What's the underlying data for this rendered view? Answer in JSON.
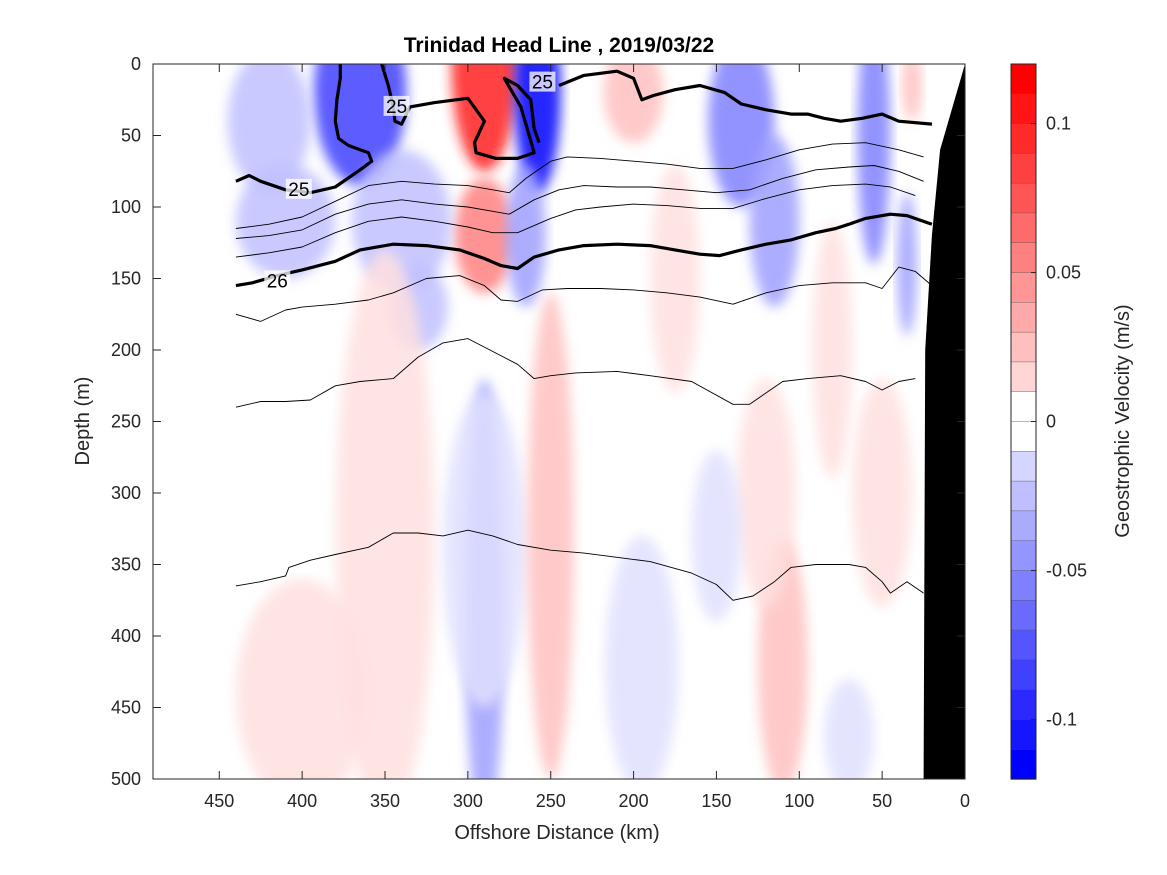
{
  "chart_data": {
    "type": "heatmap",
    "title": "Trinidad Head Line , 2019/03/22",
    "xlabel": "Offshore Distance (km)",
    "ylabel": "Depth (m)",
    "colorbar_label": "Geostrophic Velocity (m/s)",
    "xlim": [
      490,
      0
    ],
    "ylim": [
      0,
      500
    ],
    "clim": [
      -0.12,
      0.12
    ],
    "x_ticks": [
      "450",
      "400",
      "350",
      "300",
      "250",
      "200",
      "150",
      "100",
      "50",
      "0"
    ],
    "y_ticks": [
      "0",
      "50",
      "100",
      "150",
      "200",
      "250",
      "300",
      "350",
      "400",
      "450",
      "500"
    ],
    "colorbar_ticks": [
      "0.1",
      "0.05",
      "0",
      "-0.05",
      "-0.1"
    ],
    "colors": {
      "positive_max": "#ff0000",
      "negative_max": "#0000ff",
      "zero": "#ffffff",
      "bathymetry": "#000000",
      "contour": "#000000"
    },
    "velocity_patches": [
      {
        "x": 290,
        "y": 0,
        "rx": 20,
        "ry": 75,
        "v": 0.1
      },
      {
        "x": 290,
        "y": 120,
        "rx": 18,
        "ry": 40,
        "v": 0.05
      },
      {
        "x": 258,
        "y": 20,
        "rx": 14,
        "ry": 70,
        "v": -0.11
      },
      {
        "x": 265,
        "y": 120,
        "rx": 12,
        "ry": 50,
        "v": -0.04
      },
      {
        "x": 365,
        "y": 20,
        "rx": 28,
        "ry": 65,
        "v": -0.08
      },
      {
        "x": 340,
        "y": 110,
        "rx": 30,
        "ry": 50,
        "v": -0.03
      },
      {
        "x": 410,
        "y": 110,
        "rx": 30,
        "ry": 40,
        "v": -0.03
      },
      {
        "x": 420,
        "y": 40,
        "rx": 25,
        "ry": 50,
        "v": -0.02
      },
      {
        "x": 330,
        "y": 170,
        "rx": 18,
        "ry": 30,
        "v": -0.03
      },
      {
        "x": 135,
        "y": 40,
        "rx": 20,
        "ry": 60,
        "v": -0.05
      },
      {
        "x": 115,
        "y": 110,
        "rx": 15,
        "ry": 60,
        "v": -0.04
      },
      {
        "x": 55,
        "y": 50,
        "rx": 10,
        "ry": 90,
        "v": -0.05
      },
      {
        "x": 35,
        "y": 140,
        "rx": 6,
        "ry": 50,
        "v": -0.04
      },
      {
        "x": 200,
        "y": 20,
        "rx": 18,
        "ry": 35,
        "v": 0.02
      },
      {
        "x": 175,
        "y": 150,
        "rx": 15,
        "ry": 80,
        "v": 0.01
      },
      {
        "x": 32,
        "y": 15,
        "rx": 6,
        "ry": 25,
        "v": 0.03
      },
      {
        "x": 80,
        "y": 200,
        "rx": 12,
        "ry": 90,
        "v": 0.01
      },
      {
        "x": 350,
        "y": 330,
        "rx": 30,
        "ry": 200,
        "v": 0.015
      },
      {
        "x": 400,
        "y": 440,
        "rx": 40,
        "ry": 80,
        "v": 0.015
      },
      {
        "x": 290,
        "y": 380,
        "rx": 12,
        "ry": 160,
        "v": -0.04
      },
      {
        "x": 290,
        "y": 340,
        "rx": 25,
        "ry": 110,
        "v": -0.015
      },
      {
        "x": 250,
        "y": 330,
        "rx": 14,
        "ry": 170,
        "v": 0.02
      },
      {
        "x": 110,
        "y": 420,
        "rx": 15,
        "ry": 90,
        "v": 0.03
      },
      {
        "x": 120,
        "y": 300,
        "rx": 18,
        "ry": 80,
        "v": 0.015
      },
      {
        "x": 195,
        "y": 420,
        "rx": 22,
        "ry": 90,
        "v": -0.012
      },
      {
        "x": 150,
        "y": 330,
        "rx": 15,
        "ry": 60,
        "v": -0.01
      },
      {
        "x": 50,
        "y": 300,
        "rx": 18,
        "ry": 80,
        "v": 0.01
      },
      {
        "x": 70,
        "y": 470,
        "rx": 15,
        "ry": 40,
        "v": -0.015
      }
    ],
    "density_contours": [
      {
        "level": "25",
        "bold": true,
        "points": [
          [
            440,
            82
          ],
          [
            432,
            78
          ],
          [
            425,
            82
          ],
          [
            410,
            88
          ],
          [
            395,
            90
          ],
          [
            380,
            86
          ],
          [
            365,
            74
          ],
          [
            358,
            68
          ],
          [
            360,
            62
          ],
          [
            372,
            57
          ],
          [
            378,
            52
          ],
          [
            380,
            40
          ],
          [
            379,
            25
          ],
          [
            377,
            10
          ],
          [
            377,
            0
          ]
        ],
        "label_at": [
          402,
          88
        ]
      },
      {
        "level": "25",
        "bold": true,
        "points": [
          [
            352,
            0
          ],
          [
            348,
            15
          ],
          [
            345,
            30
          ],
          [
            344,
            40
          ],
          [
            340,
            42
          ],
          [
            335,
            30
          ],
          [
            320,
            27
          ],
          [
            300,
            24
          ],
          [
            290,
            40
          ],
          [
            296,
            55
          ],
          [
            295,
            62
          ],
          [
            283,
            66
          ],
          [
            270,
            66
          ],
          [
            260,
            62
          ],
          [
            263,
            50
          ],
          [
            268,
            30
          ],
          [
            278,
            10
          ],
          [
            270,
            15
          ],
          [
            262,
            25
          ],
          [
            260,
            45
          ],
          [
            257,
            55
          ]
        ],
        "label_at": [
          343,
          30
        ]
      },
      {
        "level": "25",
        "bold": true,
        "points": [
          [
            245,
            15
          ],
          [
            230,
            8
          ],
          [
            210,
            5
          ],
          [
            200,
            10
          ],
          [
            195,
            25
          ],
          [
            188,
            22
          ],
          [
            175,
            18
          ],
          [
            160,
            15
          ],
          [
            145,
            20
          ],
          [
            135,
            28
          ],
          [
            120,
            32
          ],
          [
            105,
            35
          ],
          [
            95,
            35
          ],
          [
            85,
            38
          ],
          [
            75,
            40
          ],
          [
            62,
            38
          ],
          [
            50,
            35
          ],
          [
            40,
            40
          ],
          [
            20,
            42
          ]
        ],
        "label_at": [
          255,
          13
        ]
      },
      {
        "level": "26",
        "bold": true,
        "points": [
          [
            440,
            155
          ],
          [
            430,
            153
          ],
          [
            415,
            148
          ],
          [
            400,
            144
          ],
          [
            380,
            138
          ],
          [
            365,
            130
          ],
          [
            345,
            126
          ],
          [
            325,
            127
          ],
          [
            305,
            130
          ],
          [
            290,
            136
          ],
          [
            280,
            141
          ],
          [
            270,
            143
          ],
          [
            260,
            135
          ],
          [
            245,
            130
          ],
          [
            230,
            127
          ],
          [
            210,
            126
          ],
          [
            190,
            127
          ],
          [
            175,
            130
          ],
          [
            160,
            133
          ],
          [
            148,
            134
          ],
          [
            135,
            130
          ],
          [
            120,
            126
          ],
          [
            105,
            123
          ],
          [
            90,
            118
          ],
          [
            78,
            115
          ],
          [
            70,
            112
          ],
          [
            60,
            108
          ],
          [
            45,
            105
          ],
          [
            35,
            106
          ],
          [
            20,
            112
          ]
        ],
        "label_at": [
          415,
          152
        ]
      },
      {
        "level": "",
        "bold": false,
        "points": [
          [
            440,
            115
          ],
          [
            420,
            112
          ],
          [
            400,
            107
          ],
          [
            380,
            96
          ],
          [
            360,
            85
          ],
          [
            340,
            82
          ],
          [
            320,
            84
          ],
          [
            300,
            85
          ],
          [
            285,
            88
          ],
          [
            275,
            90
          ],
          [
            265,
            80
          ],
          [
            250,
            68
          ],
          [
            240,
            65
          ],
          [
            220,
            66
          ],
          [
            200,
            68
          ],
          [
            180,
            70
          ],
          [
            160,
            73
          ],
          [
            140,
            73
          ],
          [
            120,
            67
          ],
          [
            100,
            60
          ],
          [
            80,
            56
          ],
          [
            60,
            55
          ],
          [
            40,
            60
          ],
          [
            25,
            65
          ]
        ]
      },
      {
        "level": "",
        "bold": false,
        "points": [
          [
            440,
            122
          ],
          [
            420,
            120
          ],
          [
            400,
            116
          ],
          [
            380,
            105
          ],
          [
            360,
            98
          ],
          [
            340,
            95
          ],
          [
            320,
            98
          ],
          [
            300,
            100
          ],
          [
            285,
            103
          ],
          [
            275,
            105
          ],
          [
            260,
            95
          ],
          [
            245,
            88
          ],
          [
            230,
            85
          ],
          [
            210,
            86
          ],
          [
            190,
            86
          ],
          [
            170,
            88
          ],
          [
            150,
            90
          ],
          [
            130,
            88
          ],
          [
            110,
            80
          ],
          [
            90,
            74
          ],
          [
            70,
            72
          ],
          [
            55,
            71
          ],
          [
            40,
            75
          ],
          [
            25,
            82
          ]
        ]
      },
      {
        "level": "",
        "bold": false,
        "points": [
          [
            440,
            135
          ],
          [
            420,
            132
          ],
          [
            400,
            128
          ],
          [
            380,
            118
          ],
          [
            360,
            110
          ],
          [
            340,
            107
          ],
          [
            320,
            110
          ],
          [
            300,
            114
          ],
          [
            285,
            118
          ],
          [
            270,
            118
          ],
          [
            250,
            108
          ],
          [
            235,
            102
          ],
          [
            220,
            100
          ],
          [
            200,
            98
          ],
          [
            180,
            99
          ],
          [
            160,
            101
          ],
          [
            140,
            101
          ],
          [
            120,
            94
          ],
          [
            100,
            88
          ],
          [
            80,
            85
          ],
          [
            60,
            84
          ],
          [
            45,
            86
          ],
          [
            30,
            92
          ]
        ]
      },
      {
        "level": "",
        "bold": false,
        "points": [
          [
            440,
            175
          ],
          [
            425,
            180
          ],
          [
            410,
            172
          ],
          [
            400,
            170
          ],
          [
            380,
            168
          ],
          [
            360,
            165
          ],
          [
            345,
            160
          ],
          [
            325,
            150
          ],
          [
            305,
            148
          ],
          [
            290,
            155
          ],
          [
            280,
            165
          ],
          [
            270,
            166
          ],
          [
            255,
            158
          ],
          [
            240,
            157
          ],
          [
            220,
            157
          ],
          [
            200,
            158
          ],
          [
            180,
            160
          ],
          [
            160,
            163
          ],
          [
            140,
            168
          ],
          [
            120,
            160
          ],
          [
            100,
            155
          ],
          [
            80,
            153
          ],
          [
            60,
            153
          ],
          [
            50,
            157
          ],
          [
            40,
            142
          ],
          [
            30,
            145
          ],
          [
            20,
            155
          ]
        ]
      },
      {
        "level": "",
        "bold": false,
        "points": [
          [
            440,
            240
          ],
          [
            425,
            236
          ],
          [
            410,
            236
          ],
          [
            395,
            235
          ],
          [
            380,
            225
          ],
          [
            365,
            222
          ],
          [
            345,
            220
          ],
          [
            330,
            205
          ],
          [
            315,
            195
          ],
          [
            300,
            192
          ],
          [
            290,
            198
          ],
          [
            270,
            210
          ],
          [
            260,
            220
          ],
          [
            250,
            218
          ],
          [
            235,
            216
          ],
          [
            210,
            215
          ],
          [
            190,
            218
          ],
          [
            165,
            222
          ],
          [
            140,
            238
          ],
          [
            130,
            238
          ],
          [
            120,
            230
          ],
          [
            110,
            222
          ],
          [
            95,
            220
          ],
          [
            75,
            218
          ],
          [
            60,
            222
          ],
          [
            50,
            228
          ],
          [
            40,
            222
          ],
          [
            30,
            220
          ]
        ]
      },
      {
        "level": "",
        "bold": false,
        "points": [
          [
            440,
            365
          ],
          [
            425,
            362
          ],
          [
            410,
            358
          ],
          [
            408,
            352
          ],
          [
            395,
            347
          ],
          [
            380,
            343
          ],
          [
            360,
            338
          ],
          [
            345,
            328
          ],
          [
            330,
            328
          ],
          [
            315,
            330
          ],
          [
            300,
            326
          ],
          [
            285,
            330
          ],
          [
            270,
            336
          ],
          [
            250,
            340
          ],
          [
            230,
            342
          ],
          [
            210,
            345
          ],
          [
            190,
            348
          ],
          [
            165,
            356
          ],
          [
            150,
            364
          ],
          [
            140,
            375
          ],
          [
            128,
            372
          ],
          [
            115,
            362
          ],
          [
            105,
            352
          ],
          [
            90,
            350
          ],
          [
            70,
            350
          ],
          [
            60,
            352
          ],
          [
            50,
            362
          ],
          [
            45,
            370
          ],
          [
            35,
            362
          ],
          [
            25,
            370
          ]
        ]
      }
    ],
    "bathymetry": [
      [
        25,
        500
      ],
      [
        24,
        200
      ],
      [
        20,
        120
      ],
      [
        15,
        60
      ],
      [
        0,
        0
      ],
      [
        0,
        500
      ]
    ]
  }
}
